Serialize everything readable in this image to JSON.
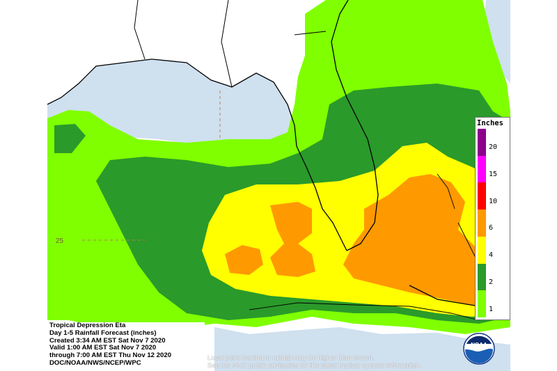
{
  "map": {
    "colors": {
      "water": "#cfe0ef",
      "land": "#ffffff",
      "r1": "#80ff00",
      "r2": "#2a9a2a",
      "r4": "#ffff00",
      "r6": "#ff9900",
      "r10": "#ff0000",
      "r15": "#ff00ff",
      "r20": "#8c008c"
    },
    "latitude_label": "25"
  },
  "info": {
    "lines": [
      "Tropical Depression Eta",
      "Day 1-5 Rainfall Forecast (inches)",
      "Created 3:34 AM EST Sat Nov 7 2020",
      "Valid 1:00 AM EST Sat Nov 7 2020",
      "through 7:00 AM EST Thu Nov 12 2020",
      "DOC/NOAA/NWS/NCEP/WPC"
    ]
  },
  "notes": [
    "Local point maximum rainfall may be higher than shown.",
    "See the NHC public advisories for the latest tropical cyclone information."
  ],
  "legend": {
    "title": "Inches",
    "labels": [
      "20",
      "15",
      "10",
      "6",
      "4",
      "2",
      "1"
    ],
    "colors": [
      "#8c008c",
      "#ff00ff",
      "#ff0000",
      "#ff9900",
      "#ffff00",
      "#2a9a2a",
      "#80ff00"
    ]
  },
  "logo": {
    "text": "NOAA",
    "icon": "noaa-logo-icon"
  }
}
